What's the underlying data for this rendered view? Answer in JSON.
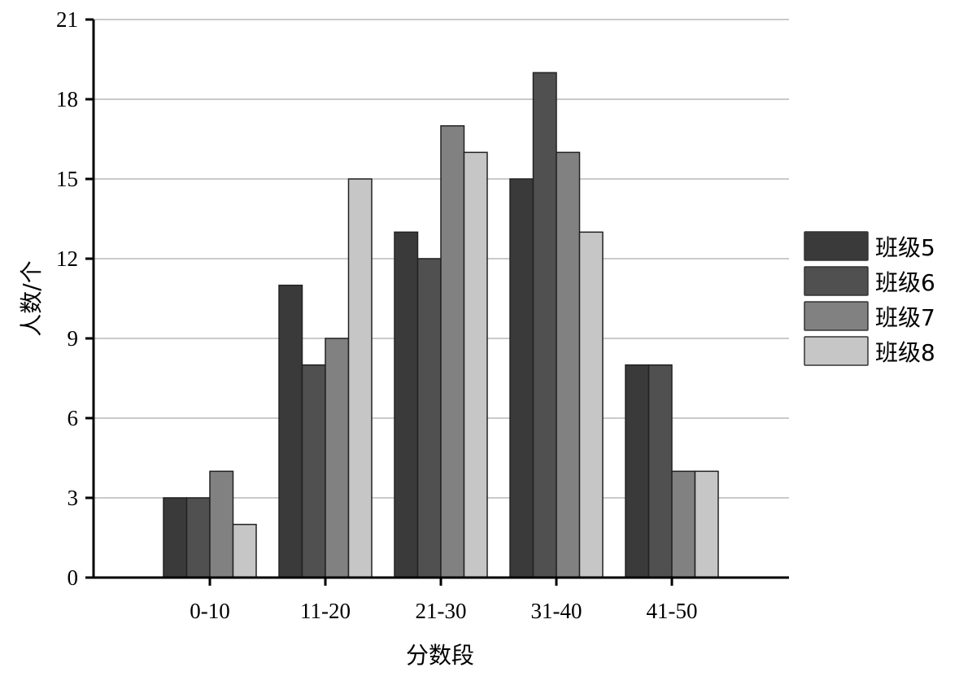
{
  "chart_data": {
    "type": "bar",
    "title": "",
    "xlabel": "分数段",
    "ylabel": "人数/个",
    "ylim": [
      0,
      21
    ],
    "yticks": [
      "0",
      "3",
      "6",
      "9",
      "12",
      "15",
      "18",
      "21"
    ],
    "grid": true,
    "legend_position": "right",
    "categories": [
      "0-10",
      "11-20",
      "21-30",
      "31-40",
      "41-50"
    ],
    "series": [
      {
        "name": "班级5",
        "color": "#3a3a3a",
        "values": [
          3,
          11,
          13,
          15,
          8
        ]
      },
      {
        "name": "班级6",
        "color": "#505050",
        "values": [
          3,
          8,
          12,
          19,
          8
        ]
      },
      {
        "name": "班级7",
        "color": "#818181",
        "values": [
          4,
          9,
          17,
          16,
          4
        ]
      },
      {
        "name": "班级8",
        "color": "#c6c6c6",
        "values": [
          2,
          15,
          16,
          13,
          4
        ]
      }
    ]
  }
}
